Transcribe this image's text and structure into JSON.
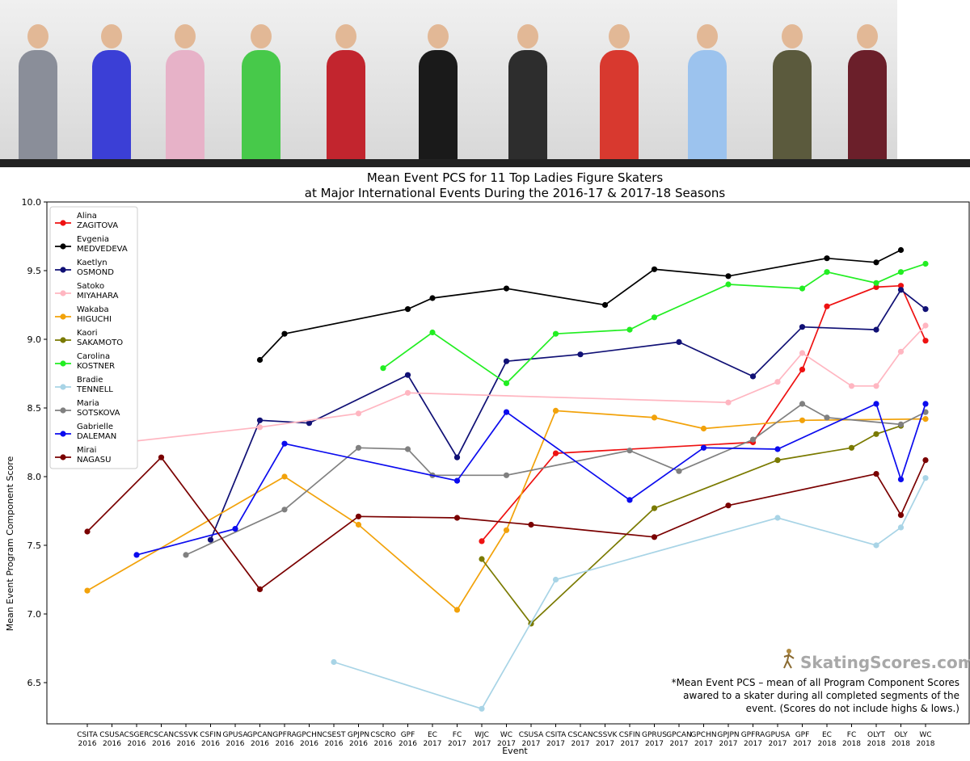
{
  "photo_strip": {
    "colors": [
      "#8a8e99",
      "#3b3fd6",
      "#e7b2c8",
      "#47c94a",
      "#c2252e",
      "#1a1a1a",
      "#2d2d2d",
      "#d8392f",
      "#9cc3ee",
      "#5b5a3d",
      "#6b1f2a"
    ]
  },
  "chart_data": {
    "type": "line",
    "title": "Mean Event PCS for 11 Top Ladies Figure Skaters",
    "subtitle": "at Major International Events During the 2016-17 & 2017-18 Seasons",
    "xlabel": "Event",
    "ylabel": "Mean Event Program Component Score",
    "ylim": [
      6.2,
      10.0
    ],
    "yticks": [
      "6.5",
      "7.0",
      "7.5",
      "8.0",
      "8.5",
      "9.0",
      "9.5",
      "10.0"
    ],
    "categories": [
      [
        "CSITA",
        "2016"
      ],
      [
        "CSUSA",
        "2016"
      ],
      [
        "CSGER",
        "2016"
      ],
      [
        "CSCAN",
        "2016"
      ],
      [
        "CSSVK",
        "2016"
      ],
      [
        "CSFIN",
        "2016"
      ],
      [
        "GPUSA",
        "2016"
      ],
      [
        "GPCAN",
        "2016"
      ],
      [
        "GPFRA",
        "2016"
      ],
      [
        "GPCHN",
        "2016"
      ],
      [
        "CSEST",
        "2016"
      ],
      [
        "GPJPN",
        "2016"
      ],
      [
        "CSCRO",
        "2016"
      ],
      [
        "GPF",
        "2016"
      ],
      [
        "EC",
        "2017"
      ],
      [
        "FC",
        "2017"
      ],
      [
        "WJC",
        "2017"
      ],
      [
        "WC",
        "2017"
      ],
      [
        "CSUSA",
        "2017"
      ],
      [
        "CSITA",
        "2017"
      ],
      [
        "CSCAN",
        "2017"
      ],
      [
        "CSSVK",
        "2017"
      ],
      [
        "CSFIN",
        "2017"
      ],
      [
        "GPRUS",
        "2017"
      ],
      [
        "GPCAN",
        "2017"
      ],
      [
        "GPCHN",
        "2017"
      ],
      [
        "GPJPN",
        "2017"
      ],
      [
        "GPFRA",
        "2017"
      ],
      [
        "GPUSA",
        "2017"
      ],
      [
        "GPF",
        "2017"
      ],
      [
        "EC",
        "2018"
      ],
      [
        "FC",
        "2018"
      ],
      [
        "OLYT",
        "2018"
      ],
      [
        "OLY",
        "2018"
      ],
      [
        "WC",
        "2018"
      ]
    ],
    "legend_position": "upper-left",
    "grid": false,
    "series": [
      {
        "name": "Alina\nZAGITOVA",
        "color": "#ee1111",
        "points": [
          [
            16,
            7.53
          ],
          [
            19,
            8.17
          ],
          [
            27,
            8.25
          ],
          [
            29,
            8.78
          ],
          [
            30,
            9.24
          ],
          [
            32,
            9.38
          ],
          [
            33,
            9.39
          ],
          [
            34,
            8.99
          ]
        ]
      },
      {
        "name": "Evgenia\nMEDVEDEVA",
        "color": "#000000",
        "points": [
          [
            7,
            8.85
          ],
          [
            8,
            9.04
          ],
          [
            13,
            9.22
          ],
          [
            14,
            9.3
          ],
          [
            17,
            9.37
          ],
          [
            21,
            9.25
          ],
          [
            23,
            9.51
          ],
          [
            26,
            9.46
          ],
          [
            30,
            9.59
          ],
          [
            32,
            9.56
          ],
          [
            33,
            9.65
          ]
        ]
      },
      {
        "name": "Kaetlyn\nOSMOND",
        "color": "#101075",
        "points": [
          [
            5,
            7.54
          ],
          [
            7,
            8.41
          ],
          [
            9,
            8.39
          ],
          [
            13,
            8.74
          ],
          [
            15,
            8.14
          ],
          [
            17,
            8.84
          ],
          [
            20,
            8.89
          ],
          [
            24,
            8.98
          ],
          [
            27,
            8.73
          ],
          [
            29,
            9.09
          ],
          [
            32,
            9.07
          ],
          [
            33,
            9.36
          ],
          [
            34,
            9.22
          ]
        ]
      },
      {
        "name": "Satoko\nMIYAHARA",
        "color": "#ffb6c1",
        "points": [
          [
            1,
            8.24
          ],
          [
            7,
            8.36
          ],
          [
            11,
            8.46
          ],
          [
            13,
            8.61
          ],
          [
            26,
            8.54
          ],
          [
            28,
            8.69
          ],
          [
            29,
            8.9
          ],
          [
            31,
            8.66
          ],
          [
            32,
            8.66
          ],
          [
            33,
            8.91
          ],
          [
            34,
            9.1
          ]
        ]
      },
      {
        "name": "Wakaba\nHIGUCHI",
        "color": "#f2a20a",
        "points": [
          [
            0,
            7.17
          ],
          [
            8,
            8.0
          ],
          [
            11,
            7.65
          ],
          [
            15,
            7.03
          ],
          [
            17,
            7.61
          ],
          [
            19,
            8.48
          ],
          [
            23,
            8.43
          ],
          [
            25,
            8.35
          ],
          [
            29,
            8.41
          ],
          [
            34,
            8.42
          ]
        ]
      },
      {
        "name": "Kaori\nSAKAMOTO",
        "color": "#7a7a00",
        "points": [
          [
            16,
            7.4
          ],
          [
            18,
            6.93
          ],
          [
            23,
            7.77
          ],
          [
            28,
            8.12
          ],
          [
            31,
            8.21
          ],
          [
            32,
            8.31
          ],
          [
            33,
            8.37
          ]
        ]
      },
      {
        "name": "Carolina\nKOSTNER",
        "color": "#22ee22",
        "points": [
          [
            12,
            8.79
          ],
          [
            14,
            9.05
          ],
          [
            17,
            8.68
          ],
          [
            19,
            9.04
          ],
          [
            22,
            9.07
          ],
          [
            23,
            9.16
          ],
          [
            26,
            9.4
          ],
          [
            29,
            9.37
          ],
          [
            30,
            9.49
          ],
          [
            32,
            9.41
          ],
          [
            33,
            9.49
          ],
          [
            34,
            9.55
          ]
        ]
      },
      {
        "name": "Bradie\nTENNELL",
        "color": "#a8d4e6",
        "points": [
          [
            10,
            6.65
          ],
          [
            16,
            6.31
          ],
          [
            19,
            7.25
          ],
          [
            28,
            7.7
          ],
          [
            32,
            7.5
          ],
          [
            33,
            7.63
          ],
          [
            34,
            7.99
          ]
        ]
      },
      {
        "name": "Maria\nSOTSKOVA",
        "color": "#808080",
        "points": [
          [
            4,
            7.43
          ],
          [
            8,
            7.76
          ],
          [
            11,
            8.21
          ],
          [
            13,
            8.2
          ],
          [
            14,
            8.01
          ],
          [
            17,
            8.01
          ],
          [
            22,
            8.19
          ],
          [
            24,
            8.04
          ],
          [
            27,
            8.27
          ],
          [
            29,
            8.53
          ],
          [
            30,
            8.43
          ],
          [
            33,
            8.38
          ],
          [
            34,
            8.47
          ]
        ]
      },
      {
        "name": "Gabrielle\nDALEMAN",
        "color": "#0b0bee",
        "points": [
          [
            2,
            7.43
          ],
          [
            6,
            7.62
          ],
          [
            8,
            8.24
          ],
          [
            15,
            7.97
          ],
          [
            17,
            8.47
          ],
          [
            22,
            7.83
          ],
          [
            25,
            8.21
          ],
          [
            28,
            8.2
          ],
          [
            32,
            8.53
          ],
          [
            33,
            7.98
          ],
          [
            34,
            8.53
          ]
        ]
      },
      {
        "name": "Mirai\nNAGASU",
        "color": "#7a0000",
        "points": [
          [
            0,
            7.6
          ],
          [
            3,
            8.14
          ],
          [
            7,
            7.18
          ],
          [
            11,
            7.71
          ],
          [
            15,
            7.7
          ],
          [
            18,
            7.65
          ],
          [
            23,
            7.56
          ],
          [
            26,
            7.79
          ],
          [
            32,
            8.02
          ],
          [
            33,
            7.72
          ],
          [
            34,
            8.12
          ]
        ]
      }
    ],
    "footnote": [
      "*Mean Event PCS – mean of all Program Component Scores",
      "awared to a skater during all completed segments of the",
      "event. (Scores do not include highs & lows.)"
    ]
  },
  "brand": {
    "name": "SkatingScores.com",
    "icon": "skater-icon"
  }
}
